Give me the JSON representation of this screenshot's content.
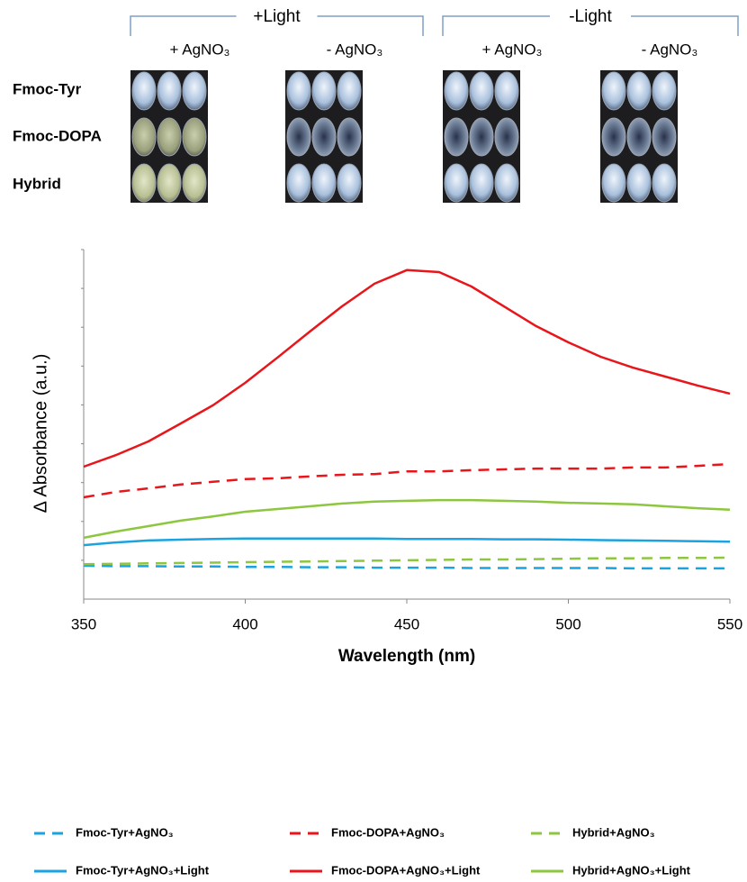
{
  "plate_panel": {
    "groups": [
      {
        "label": "+Light",
        "columns": [
          "+ AgNO₃",
          "- AgNO₃"
        ]
      },
      {
        "label": "-Light",
        "columns": [
          "+ AgNO₃",
          "- AgNO₃"
        ]
      }
    ],
    "rows": [
      "Fmoc-Tyr",
      "Fmoc-DOPA",
      "Hybrid"
    ]
  },
  "chart_data": {
    "type": "line",
    "x_label": "Wavelength (nm)",
    "y_label": "Δ Absorbance (a.u.)",
    "x": [
      350,
      360,
      370,
      380,
      390,
      400,
      410,
      420,
      430,
      440,
      450,
      460,
      470,
      480,
      490,
      500,
      510,
      520,
      530,
      540,
      550
    ],
    "xlim": [
      350,
      550
    ],
    "xticks": [
      350,
      400,
      450,
      500,
      550
    ],
    "ylim": [
      0,
      9
    ],
    "yticks": [
      1,
      2,
      3,
      4,
      5,
      6,
      7,
      8,
      9
    ],
    "series": [
      {
        "name": "Fmoc-Tyr+AgNO₃",
        "color": "#1ba3e0",
        "dashed": true,
        "values": [
          0.86,
          0.85,
          0.85,
          0.84,
          0.84,
          0.83,
          0.83,
          0.82,
          0.82,
          0.81,
          0.81,
          0.81,
          0.8,
          0.8,
          0.8,
          0.8,
          0.8,
          0.79,
          0.79,
          0.79,
          0.79
        ]
      },
      {
        "name": "Fmoc-DOPA+AgNO₃",
        "color": "#e8161b",
        "dashed": true,
        "values": [
          2.62,
          2.76,
          2.85,
          2.95,
          3.02,
          3.09,
          3.11,
          3.16,
          3.2,
          3.22,
          3.29,
          3.29,
          3.32,
          3.34,
          3.36,
          3.36,
          3.36,
          3.39,
          3.39,
          3.43,
          3.48
        ]
      },
      {
        "name": "Hybrid+AgNO₃",
        "color": "#8dc63f",
        "dashed": true,
        "values": [
          0.9,
          0.91,
          0.92,
          0.93,
          0.94,
          0.95,
          0.96,
          0.97,
          0.98,
          0.99,
          1.0,
          1.01,
          1.02,
          1.02,
          1.03,
          1.04,
          1.05,
          1.05,
          1.06,
          1.06,
          1.07
        ]
      },
      {
        "name": "Fmoc-Tyr+AgNO₃+Light",
        "color": "#1ba3e0",
        "dashed": false,
        "values": [
          1.39,
          1.46,
          1.51,
          1.53,
          1.55,
          1.56,
          1.56,
          1.56,
          1.56,
          1.56,
          1.55,
          1.55,
          1.55,
          1.54,
          1.54,
          1.53,
          1.52,
          1.51,
          1.5,
          1.49,
          1.48
        ]
      },
      {
        "name": "Fmoc-DOPA+AgNO₃+Light",
        "color": "#e8161b",
        "dashed": false,
        "values": [
          3.41,
          3.71,
          4.06,
          4.52,
          4.99,
          5.57,
          6.22,
          6.89,
          7.54,
          8.12,
          8.47,
          8.42,
          8.05,
          7.54,
          7.03,
          6.61,
          6.24,
          5.96,
          5.73,
          5.5,
          5.29
        ]
      },
      {
        "name": "Hybrid+AgNO₃+Light",
        "color": "#8dc63f",
        "dashed": false,
        "values": [
          1.58,
          1.74,
          1.88,
          2.02,
          2.13,
          2.25,
          2.32,
          2.39,
          2.46,
          2.51,
          2.53,
          2.55,
          2.55,
          2.53,
          2.51,
          2.48,
          2.46,
          2.44,
          2.39,
          2.34,
          2.3
        ]
      }
    ]
  }
}
